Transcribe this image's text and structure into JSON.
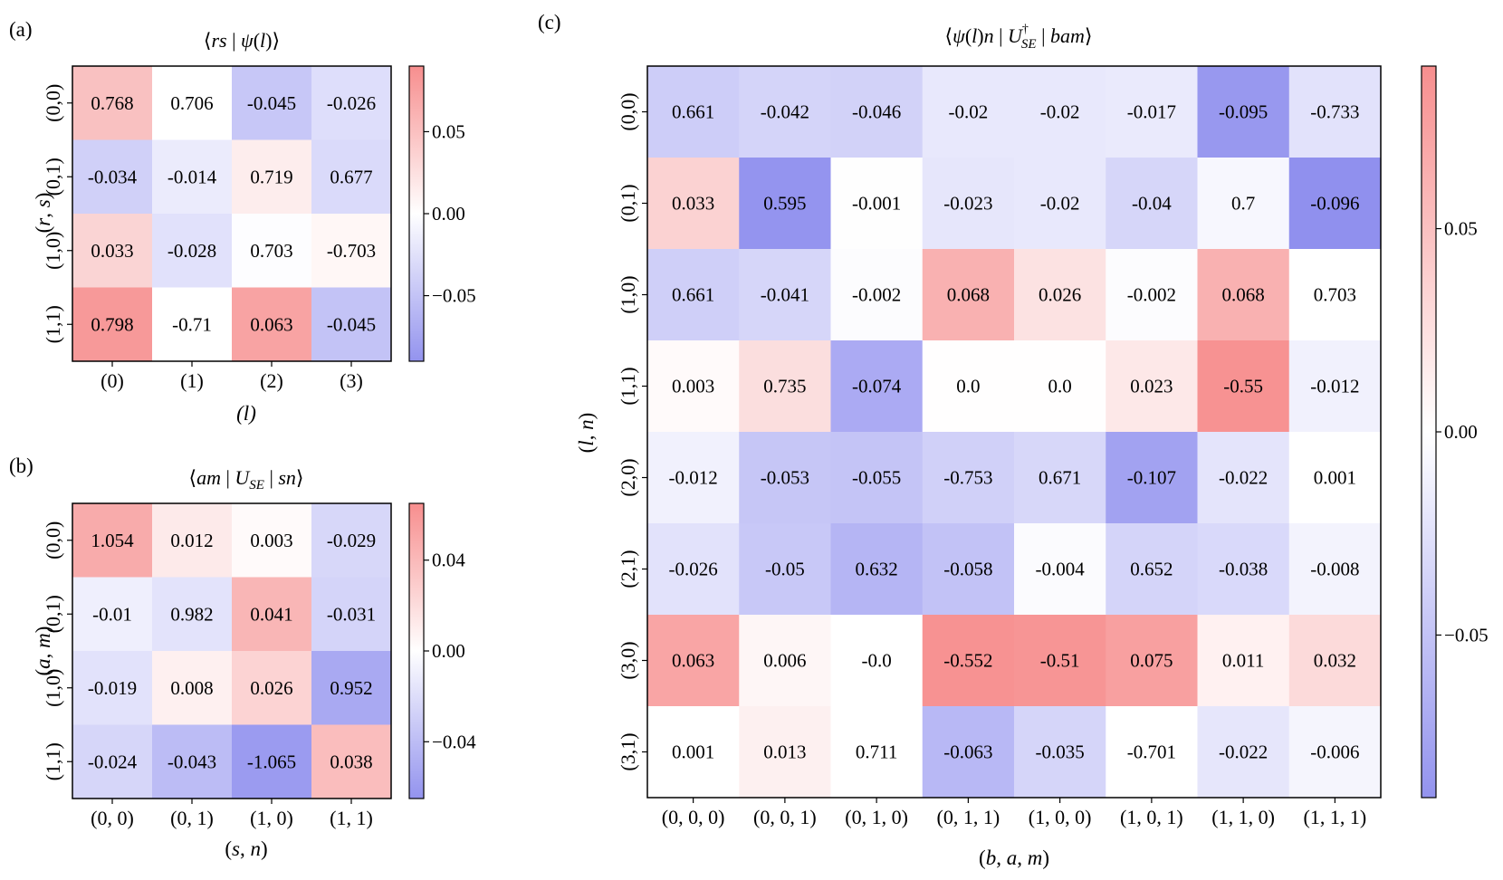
{
  "chart_data": [
    {
      "type": "heatmap",
      "panel_label": "(a)",
      "title": "⟨rs | ψ(l)⟩",
      "xlabel": "(l)",
      "ylabel": "(r, s)",
      "x_categories": [
        "(0)",
        "(1)",
        "(2)",
        "(3)"
      ],
      "y_categories": [
        "(0,0)",
        "(0,1)",
        "(1,0)",
        "(1,1)"
      ],
      "values": [
        [
          "0.768",
          "0.706",
          "-0.045",
          "-0.026"
        ],
        [
          "-0.034",
          "-0.014",
          "0.719",
          "0.677"
        ],
        [
          "0.033",
          "-0.028",
          "0.703",
          "-0.703"
        ],
        [
          "0.798",
          "-0.71",
          "0.063",
          "-0.045"
        ]
      ],
      "colors": [
        [
          "#f9c1c1",
          "#ffffff",
          "#c7c7f7",
          "#dedefb"
        ],
        [
          "#d0d0f8",
          "#ebebfc",
          "#fdeded",
          "#dadafa"
        ],
        [
          "#fad4d4",
          "#e1e1fb",
          "#fdfdff",
          "#fff7f6"
        ],
        [
          "#f79999",
          "#ffffff",
          "#f8a3a3",
          "#c3c3f6"
        ]
      ],
      "colorbar": {
        "min": -0.09,
        "max": 0.09,
        "ticks": [
          0.05,
          0.0,
          -0.05
        ],
        "tick_labels": [
          "0.05",
          "0.00",
          "−0.05"
        ]
      }
    },
    {
      "type": "heatmap",
      "panel_label": "(b)",
      "title": "⟨am | U_SE | sn⟩",
      "xlabel": "(s, n)",
      "ylabel": "(a, m)",
      "x_categories": [
        "(0, 0)",
        "(0, 1)",
        "(1, 0)",
        "(1, 1)"
      ],
      "y_categories": [
        "(0,0)",
        "(0,1)",
        "(1,0)",
        "(1,1)"
      ],
      "values": [
        [
          "1.054",
          "0.012",
          "0.003",
          "-0.029"
        ],
        [
          "-0.01",
          "0.982",
          "0.041",
          "-0.031"
        ],
        [
          "-0.019",
          "0.008",
          "0.026",
          "0.952"
        ],
        [
          "-0.024",
          "-0.043",
          "-1.065",
          "0.038"
        ]
      ],
      "colors": [
        [
          "#f8abab",
          "#fdeaea",
          "#fffafa",
          "#d7d7f9"
        ],
        [
          "#efeffd",
          "#e3e3fb",
          "#f9b6b6",
          "#d4d4f9"
        ],
        [
          "#e2e2fb",
          "#fef0f0",
          "#fcd3d3",
          "#a9a9f2"
        ],
        [
          "#d6d6f9",
          "#bcbcf5",
          "#9b9bf0",
          "#fabdbd"
        ]
      ],
      "colorbar": {
        "min": -0.065,
        "max": 0.065,
        "ticks": [
          0.04,
          0.0,
          -0.04
        ],
        "tick_labels": [
          "0.04",
          "0.00",
          "−0.04"
        ]
      }
    },
    {
      "type": "heatmap",
      "panel_label": "(c)",
      "title": "⟨ψ(l)n | U†_SE | bam⟩",
      "xlabel": "(b, a, m)",
      "ylabel": "(l, n)",
      "x_categories": [
        "(0, 0, 0)",
        "(0, 0, 1)",
        "(0, 1, 0)",
        "(0, 1, 1)",
        "(1, 0, 0)",
        "(1, 0, 1)",
        "(1, 1, 0)",
        "(1, 1, 1)"
      ],
      "y_categories": [
        "(0,0)",
        "(0,1)",
        "(1,0)",
        "(1,1)",
        "(2,0)",
        "(2,1)",
        "(3,0)",
        "(3,1)"
      ],
      "values": [
        [
          "0.661",
          "-0.042",
          "-0.046",
          "-0.02",
          "-0.02",
          "-0.017",
          "-0.095",
          "-0.733"
        ],
        [
          "0.033",
          "0.595",
          "-0.001",
          "-0.023",
          "-0.02",
          "-0.04",
          "0.7",
          "-0.096"
        ],
        [
          "0.661",
          "-0.041",
          "-0.002",
          "0.068",
          "0.026",
          "-0.002",
          "0.068",
          "0.703"
        ],
        [
          "0.003",
          "0.735",
          "-0.074",
          "0.0",
          "0.0",
          "0.023",
          "-0.55",
          "-0.012"
        ],
        [
          "-0.012",
          "-0.053",
          "-0.055",
          "-0.753",
          "0.671",
          "-0.107",
          "-0.022",
          "0.001"
        ],
        [
          "-0.026",
          "-0.05",
          "0.632",
          "-0.058",
          "-0.004",
          "0.652",
          "-0.038",
          "-0.008"
        ],
        [
          "0.063",
          "0.006",
          "-0.0",
          "-0.552",
          "-0.51",
          "0.075",
          "0.011",
          "0.032"
        ],
        [
          "0.001",
          "0.013",
          "0.711",
          "-0.063",
          "-0.035",
          "-0.701",
          "-0.022",
          "-0.006"
        ]
      ],
      "colors": [
        [
          "#cdcdf8",
          "#d4d4f9",
          "#d2d2f8",
          "#e8e8fc",
          "#e8e8fc",
          "#eaeafc",
          "#9898ef",
          "#e2e2fb"
        ],
        [
          "#fbd2d2",
          "#9494ef",
          "#fefefe",
          "#e6e6fb",
          "#e8e8fc",
          "#d6d6f9",
          "#f7f7fe",
          "#9090ee"
        ],
        [
          "#cfcff8",
          "#d6d6f9",
          "#fcfcfe",
          "#f9b1b1",
          "#fce2e2",
          "#fcfcfe",
          "#f9b1b1",
          "#ffffff"
        ],
        [
          "#fffafa",
          "#fbdede",
          "#abaaf3",
          "#fffefe",
          "#fffefe",
          "#fde8e8",
          "#f79292",
          "#f1f1fd"
        ],
        [
          "#f1f1fd",
          "#c6c6f6",
          "#c4c4f6",
          "#d0d0f8",
          "#d7d7f9",
          "#a2a2f1",
          "#e4e4fb",
          "#ffffff"
        ],
        [
          "#e2e2fb",
          "#c8c8f7",
          "#b5b5f4",
          "#c2c2f6",
          "#fbfbfe",
          "#d4d4f9",
          "#d9d9fa",
          "#f3f3fd"
        ],
        [
          "#f9a5a5",
          "#fef6f6",
          "#ffffff",
          "#f79292",
          "#f79595",
          "#f8a0a0",
          "#fff1f1",
          "#fcdada"
        ],
        [
          "#ffffff",
          "#fdf0f0",
          "#ffffff",
          "#b8b8f5",
          "#d5d5f9",
          "#ffffff",
          "#e6e6fb",
          "#f5f5fd"
        ]
      ],
      "colorbar": {
        "min": -0.09,
        "max": 0.09,
        "ticks": [
          0.05,
          0.0,
          -0.05
        ],
        "tick_labels": [
          "0.05",
          "0.00",
          "−0.05"
        ]
      }
    }
  ]
}
